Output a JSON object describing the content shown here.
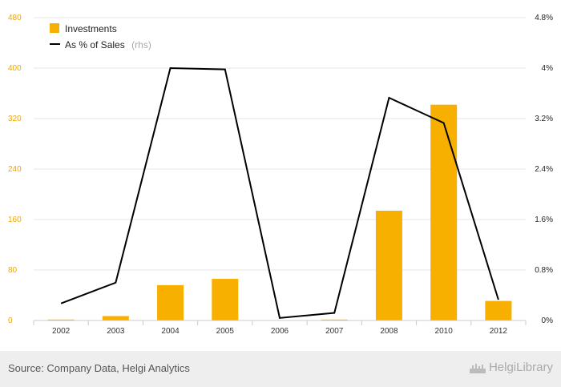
{
  "chart_data": {
    "type": "bar",
    "categories": [
      "2002",
      "2003",
      "2004",
      "2005",
      "2006",
      "2007",
      "2008",
      "2010",
      "2012"
    ],
    "series": [
      {
        "name": "Investments",
        "type": "bar",
        "axis": "left",
        "values": [
          1.5,
          7,
          56,
          66,
          0,
          1.5,
          174,
          342,
          31
        ]
      },
      {
        "name": "As % of Sales",
        "type": "line",
        "axis": "right",
        "values": [
          0.27,
          0.6,
          4.0,
          3.98,
          0.04,
          0.12,
          3.53,
          3.13,
          0.33
        ]
      }
    ],
    "y_left": {
      "min": 0,
      "max": 480,
      "ticks": [
        "0",
        "80",
        "160",
        "240",
        "320",
        "400",
        "480"
      ]
    },
    "y_right": {
      "min": 0,
      "max": 4.8,
      "ticks": [
        "0%",
        "0.8%",
        "1.6%",
        "2.4%",
        "3.2%",
        "4%",
        "4.8%"
      ]
    },
    "legend": {
      "position": "top-left",
      "items": [
        {
          "label": "Investments",
          "suffix": ""
        },
        {
          "label": "As % of Sales",
          "suffix": "(rhs)"
        }
      ]
    },
    "grid": true
  },
  "colors": {
    "bar": "#f7b000",
    "line": "#000000",
    "grid": "#e6e6e6"
  },
  "footer": {
    "source": "Source: Company Data, Helgi Analytics",
    "brand": "HelgiLibrary",
    "brand_icon": "city-skyline-icon"
  }
}
